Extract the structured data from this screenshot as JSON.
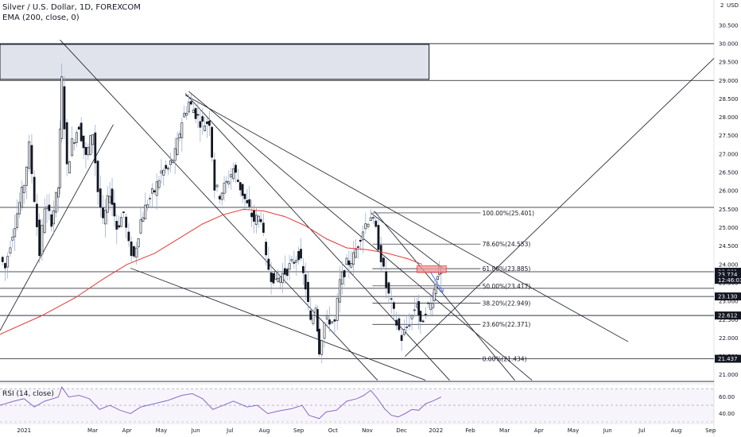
{
  "header": {
    "symbol": "Silver / U.S. Dollar, 1D, FOREXCOM",
    "indicator": "EMA (200, close, 0)",
    "rsi_label": "RSI (14, close)"
  },
  "axis": {
    "currency": "USD",
    "scale_marker": "2"
  },
  "colors": {
    "up": "#131722",
    "down": "#131722",
    "ema": "#e53935",
    "rsi": "#7e57c2",
    "trendline": "#131722",
    "zone_fill": "#e0e3eb",
    "target_box": "#ef9a9a",
    "arrow": "#2962ff",
    "tag_bg": "#131722"
  },
  "chart_data": [
    {
      "type": "candlestick",
      "ylim": [
        20.8,
        31.1
      ],
      "yticks": [
        21.0,
        21.5,
        22.0,
        22.5,
        23.0,
        23.5,
        24.0,
        24.5,
        25.0,
        25.5,
        26.0,
        26.5,
        27.0,
        27.5,
        28.0,
        28.5,
        29.0,
        29.5,
        30.0,
        30.5
      ],
      "ytick_labels": [
        "21.000",
        "21.500",
        "22.000",
        "22.500",
        "23.000",
        "23.500",
        "24.000",
        "24.500",
        "25.000",
        "25.500",
        "26.000",
        "26.500",
        "27.000",
        "27.500",
        "28.000",
        "28.500",
        "29.000",
        "29.500",
        "30.000",
        "30.500"
      ],
      "x_labels": [
        "2021",
        "Mar",
        "Apr",
        "May",
        "Jun",
        "Jul",
        "Aug",
        "Sep",
        "Oct",
        "Nov",
        "Dec",
        "2022",
        "Feb",
        "Mar",
        "Apr",
        "May",
        "Jun",
        "Jul",
        "Aug",
        "Sep"
      ],
      "x_months": [
        0,
        2,
        3,
        4,
        5,
        6,
        7,
        8,
        9,
        10,
        11,
        12,
        13,
        14,
        15,
        16,
        17,
        18,
        19,
        20
      ],
      "x_start_month": -0.7,
      "x_end_month": 20.1,
      "ema_200": [
        [
          -0.7,
          22.1
        ],
        [
          0.5,
          22.6
        ],
        [
          1.5,
          23.1
        ],
        [
          2.3,
          23.6
        ],
        [
          3.0,
          24.0
        ],
        [
          3.8,
          24.3
        ],
        [
          4.5,
          24.7
        ],
        [
          5.2,
          25.1
        ],
        [
          5.8,
          25.35
        ],
        [
          6.4,
          25.5
        ],
        [
          7.0,
          25.45
        ],
        [
          7.6,
          25.3
        ],
        [
          8.2,
          25.05
        ],
        [
          8.8,
          24.7
        ],
        [
          9.4,
          24.45
        ],
        [
          10.0,
          24.4
        ],
        [
          10.6,
          24.3
        ],
        [
          11.2,
          24.15
        ],
        [
          11.6,
          24.0
        ]
      ],
      "price_path": [
        [
          -0.7,
          24.2
        ],
        [
          -0.55,
          23.9
        ],
        [
          -0.4,
          24.6
        ],
        [
          -0.2,
          25.4
        ],
        [
          0.0,
          26.2
        ],
        [
          0.15,
          27.2
        ],
        [
          0.3,
          25.8
        ],
        [
          0.45,
          24.3
        ],
        [
          0.6,
          25.6
        ],
        [
          0.8,
          25.2
        ],
        [
          1.0,
          26.1
        ],
        [
          1.1,
          29.0
        ],
        [
          1.25,
          26.6
        ],
        [
          1.4,
          27.3
        ],
        [
          1.6,
          27.8
        ],
        [
          1.8,
          26.9
        ],
        [
          2.0,
          27.6
        ],
        [
          2.15,
          26.0
        ],
        [
          2.3,
          25.1
        ],
        [
          2.5,
          26.0
        ],
        [
          2.7,
          25.0
        ],
        [
          2.9,
          25.4
        ],
        [
          3.05,
          24.5
        ],
        [
          3.2,
          24.2
        ],
        [
          3.4,
          25.2
        ],
        [
          3.6,
          25.7
        ],
        [
          3.8,
          26.0
        ],
        [
          4.0,
          26.5
        ],
        [
          4.2,
          26.6
        ],
        [
          4.4,
          27.0
        ],
        [
          4.6,
          27.9
        ],
        [
          4.8,
          28.4
        ],
        [
          5.0,
          28.1
        ],
        [
          5.2,
          27.8
        ],
        [
          5.4,
          27.9
        ],
        [
          5.55,
          26.1
        ],
        [
          5.7,
          25.9
        ],
        [
          5.9,
          26.2
        ],
        [
          6.1,
          26.6
        ],
        [
          6.3,
          26.1
        ],
        [
          6.5,
          25.6
        ],
        [
          6.7,
          25.2
        ],
        [
          6.9,
          25.3
        ],
        [
          7.05,
          24.1
        ],
        [
          7.2,
          23.7
        ],
        [
          7.4,
          23.6
        ],
        [
          7.6,
          23.8
        ],
        [
          7.8,
          24.0
        ],
        [
          8.0,
          24.3
        ],
        [
          8.2,
          23.4
        ],
        [
          8.35,
          22.4
        ],
        [
          8.5,
          22.9
        ],
        [
          8.6,
          21.7
        ],
        [
          8.75,
          22.4
        ],
        [
          8.9,
          22.5
        ],
        [
          9.05,
          22.4
        ],
        [
          9.2,
          23.5
        ],
        [
          9.4,
          24.0
        ],
        [
          9.6,
          24.2
        ],
        [
          9.8,
          24.8
        ],
        [
          9.95,
          25.1
        ],
        [
          10.1,
          25.35
        ],
        [
          10.25,
          24.9
        ],
        [
          10.4,
          24.2
        ],
        [
          10.55,
          23.4
        ],
        [
          10.7,
          22.9
        ],
        [
          10.85,
          22.4
        ],
        [
          11.0,
          22.0
        ],
        [
          11.15,
          22.3
        ],
        [
          11.3,
          22.6
        ],
        [
          11.45,
          23.0
        ],
        [
          11.55,
          22.3
        ],
        [
          11.7,
          22.8
        ],
        [
          11.85,
          22.9
        ],
        [
          11.95,
          23.3
        ],
        [
          12.05,
          23.8
        ],
        [
          12.15,
          23.72
        ]
      ],
      "h_levels": [
        {
          "label": "upper",
          "value": 30.0
        },
        {
          "label": "mid",
          "value": 29.0
        },
        {
          "label": "ema_tag",
          "value": 23.801
        },
        {
          "label": "a",
          "value": 23.13
        },
        {
          "label": "b",
          "value": 22.612
        },
        {
          "label": "c",
          "value": 21.437
        },
        {
          "label": "d",
          "value": 20.82
        },
        {
          "label": "top",
          "value": 25.55
        },
        {
          "label": "mid2",
          "value": 23.35
        }
      ],
      "supply_zone": {
        "x0": -0.7,
        "x1": 11.8,
        "y0": 29.03,
        "y1": 29.98
      },
      "target_box": {
        "x0": 11.45,
        "x1": 12.3,
        "y0": 23.78,
        "y1": 23.96
      },
      "fib_levels": [
        {
          "label": "100.00%(25.401)",
          "value": 25.401
        },
        {
          "label": "78.60%(24.553)",
          "value": 24.553
        },
        {
          "label": "61.80%(23.885)",
          "value": 23.885
        },
        {
          "label": "50.00%(23.417)",
          "value": 23.417
        },
        {
          "label": "38.20%(22.949)",
          "value": 22.949
        },
        {
          "label": "23.60%(22.371)",
          "value": 22.371
        },
        {
          "label": "0.00%(21.434)",
          "value": 21.434
        }
      ],
      "price_tags": [
        {
          "label": "23.801",
          "value": 23.801
        },
        {
          "label": "23.724",
          "value": 23.724
        },
        {
          "label": "12:46:03",
          "value": 23.58
        },
        {
          "label": "23.130",
          "value": 23.13
        },
        {
          "label": "22.612",
          "value": 22.612
        },
        {
          "label": "21.437",
          "value": 21.437
        }
      ],
      "trendlines": [
        [
          [
            1.05,
            30.1
          ],
          [
            10.3,
            20.85
          ]
        ],
        [
          [
            4.7,
            28.65
          ],
          [
            12.4,
            20.85
          ]
        ],
        [
          [
            4.7,
            28.6
          ],
          [
            17.6,
            21.9
          ]
        ],
        [
          [
            4.8,
            28.7
          ],
          [
            14.8,
            20.85
          ]
        ],
        [
          [
            10.2,
            25.45
          ],
          [
            14.3,
            20.85
          ]
        ],
        [
          [
            3.1,
            23.9
          ],
          [
            11.7,
            20.85
          ]
        ],
        [
          [
            -0.7,
            22.2
          ],
          [
            2.6,
            27.8
          ]
        ],
        [
          [
            11.1,
            21.5
          ],
          [
            20.1,
            29.6
          ]
        ],
        [
          [
            10.1,
            25.4
          ],
          [
            12.2,
            23.9
          ]
        ]
      ]
    },
    {
      "type": "line",
      "name": "RSI (14, close)",
      "ylim": [
        30,
        75
      ],
      "yticks": [
        40.0,
        60.0
      ],
      "ytick_labels": [
        "40.00",
        "60.00"
      ],
      "bands": [
        70,
        50,
        30
      ],
      "values": [
        [
          -0.7,
          50
        ],
        [
          -0.3,
          55
        ],
        [
          0.0,
          58
        ],
        [
          0.3,
          48
        ],
        [
          0.6,
          55
        ],
        [
          1.0,
          60
        ],
        [
          1.1,
          72
        ],
        [
          1.3,
          60
        ],
        [
          1.6,
          62
        ],
        [
          1.9,
          58
        ],
        [
          2.2,
          45
        ],
        [
          2.5,
          50
        ],
        [
          2.8,
          44
        ],
        [
          3.1,
          40
        ],
        [
          3.4,
          48
        ],
        [
          3.8,
          52
        ],
        [
          4.2,
          56
        ],
        [
          4.6,
          62
        ],
        [
          4.9,
          64
        ],
        [
          5.2,
          58
        ],
        [
          5.5,
          45
        ],
        [
          5.8,
          50
        ],
        [
          6.1,
          55
        ],
        [
          6.5,
          48
        ],
        [
          6.8,
          50
        ],
        [
          7.1,
          40
        ],
        [
          7.4,
          43
        ],
        [
          7.8,
          46
        ],
        [
          8.1,
          50
        ],
        [
          8.3,
          38
        ],
        [
          8.6,
          34
        ],
        [
          8.8,
          42
        ],
        [
          9.1,
          44
        ],
        [
          9.4,
          55
        ],
        [
          9.7,
          58
        ],
        [
          9.9,
          62
        ],
        [
          10.1,
          68
        ],
        [
          10.3,
          58
        ],
        [
          10.5,
          46
        ],
        [
          10.7,
          38
        ],
        [
          10.9,
          36
        ],
        [
          11.1,
          40
        ],
        [
          11.3,
          45
        ],
        [
          11.5,
          44
        ],
        [
          11.7,
          52
        ],
        [
          11.9,
          55
        ],
        [
          12.15,
          60
        ]
      ]
    }
  ]
}
